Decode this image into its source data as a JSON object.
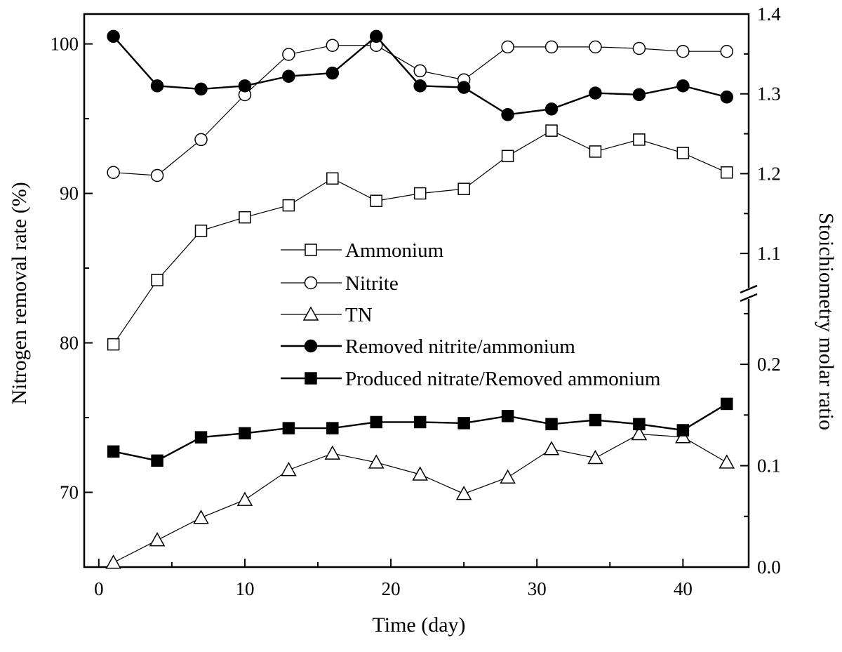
{
  "chart_data": {
    "type": "line",
    "x": [
      1,
      4,
      7,
      10,
      13,
      16,
      19,
      22,
      25,
      28,
      31,
      34,
      37,
      40,
      43
    ],
    "xlabel": "Time (day)",
    "xlim": [
      -1,
      44.5
    ],
    "xticks": [
      0,
      10,
      20,
      30,
      40
    ],
    "left_axis": {
      "label": "Nitrogen removal rate (%)",
      "ylim": [
        65,
        102
      ],
      "ticks": [
        70,
        80,
        90,
        100
      ]
    },
    "right_axis": {
      "label": "Stoichiometry molar ratio",
      "broken": true,
      "lower_ylim": [
        0.0,
        0.27
      ],
      "lower_ticks": [
        0.0,
        0.1,
        0.2
      ],
      "upper_ylim": [
        1.05,
        1.4
      ],
      "upper_ticks": [
        1.1,
        1.2,
        1.3,
        1.4
      ]
    },
    "series": [
      {
        "name": "Ammonium",
        "axis": "left",
        "marker": "square-open",
        "values": [
          79.9,
          84.2,
          87.5,
          88.4,
          89.2,
          91.0,
          89.5,
          90.0,
          90.3,
          92.5,
          94.2,
          92.8,
          93.6,
          92.7,
          91.4
        ]
      },
      {
        "name": "Nitrite",
        "axis": "left",
        "marker": "circle-open",
        "values": [
          91.4,
          91.2,
          93.6,
          96.6,
          99.3,
          99.9,
          99.9,
          98.2,
          97.6,
          99.8,
          99.8,
          99.8,
          99.7,
          99.5,
          99.5
        ]
      },
      {
        "name": "TN",
        "axis": "left",
        "marker": "triangle-open",
        "values": [
          65.3,
          66.8,
          68.3,
          69.5,
          71.5,
          72.6,
          72.0,
          71.2,
          69.9,
          71.0,
          72.9,
          72.3,
          73.9,
          73.7,
          72.0
        ]
      },
      {
        "name": "Removed nitrite/ammonium",
        "axis": "right",
        "marker": "circle-filled",
        "values": [
          1.372,
          1.31,
          1.306,
          1.31,
          1.322,
          1.326,
          1.372,
          1.31,
          1.308,
          1.274,
          1.281,
          1.301,
          1.299,
          1.31,
          1.296
        ]
      },
      {
        "name": "Produced nitrate/Removed ammonium",
        "axis": "right",
        "marker": "square-filled",
        "values": [
          0.114,
          0.105,
          0.128,
          0.132,
          0.137,
          0.137,
          0.143,
          0.143,
          0.142,
          0.149,
          0.141,
          0.145,
          0.141,
          0.135,
          0.161
        ]
      }
    ]
  }
}
